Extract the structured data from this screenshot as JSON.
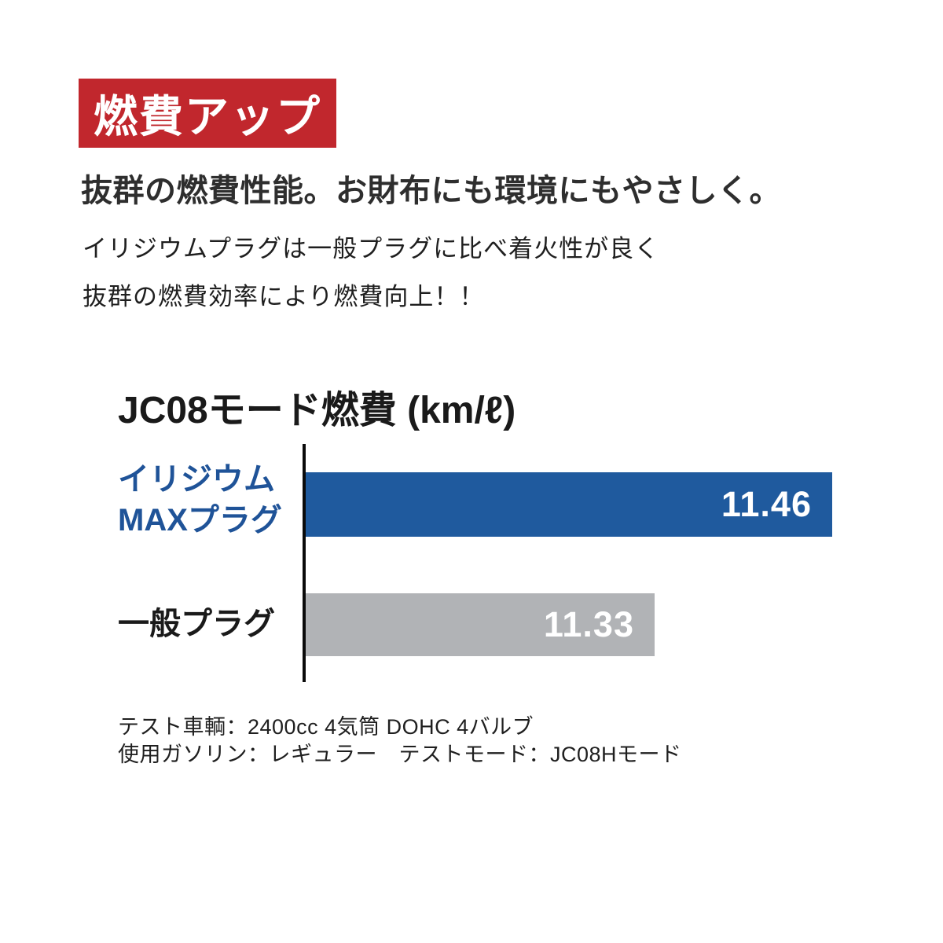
{
  "banner": {
    "label": "燃費アップ",
    "bg_color": "#c1272d",
    "text_color": "#ffffff"
  },
  "headline": "抜群の燃費性能。お財布にも環境にもやさしく。",
  "lead": {
    "line1": "イリジウムプラグは一般プラグに比べ着火性が良く",
    "line2": "抜群の燃費効率により燃費向上！！"
  },
  "chart_data": {
    "type": "bar",
    "orientation": "horizontal",
    "title": "JC08モード燃費 (km/ℓ)",
    "categories": [
      "イリジウムMAXプラグ",
      "一般プラグ"
    ],
    "category_lines": [
      [
        "イリジウム",
        "MAXプラグ"
      ],
      [
        "一般プラグ"
      ]
    ],
    "values": [
      11.46,
      11.33
    ],
    "value_labels": [
      "11.46",
      "11.33"
    ],
    "unit": "km/ℓ",
    "bar_colors": [
      "#1f5a9e",
      "#b1b3b6"
    ],
    "label_colors": [
      "#1f5398",
      "#1a1a1a"
    ],
    "value_label_color": "#ffffff",
    "value_label_position": "inside-right",
    "xlim": [
      11.075,
      11.46
    ],
    "axis_color": "#0a0a0a",
    "grid": false,
    "legend": false
  },
  "footnotes": [
    "テスト車輌：2400cc 4気筒 DOHC 4バルブ",
    "使用ガソリン：レギュラー　テストモード：JC08Hモード"
  ]
}
